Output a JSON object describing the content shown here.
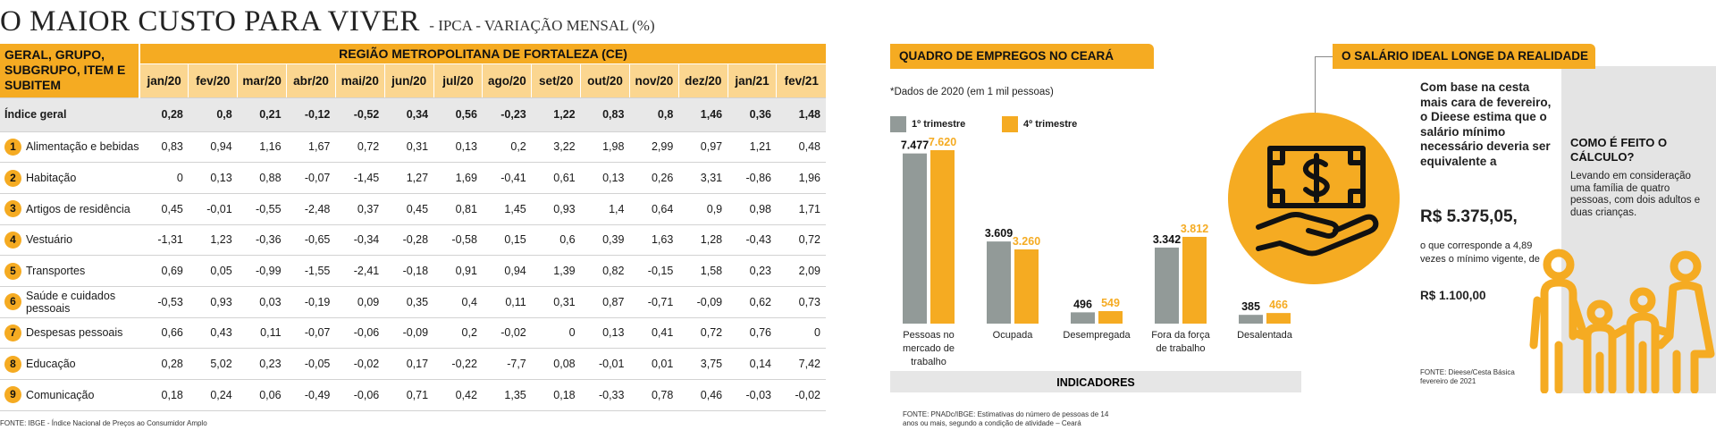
{
  "header": {
    "title": "O MAIOR CUSTO PARA VIVER",
    "subtitle": "- IPCA - VARIAÇÃO MENSAL (%)"
  },
  "table": {
    "group_header": "GERAL, GRUPO, SUBGRUPO, ITEM E SUBITEM",
    "region_header": "REGIÃO METROPOLITANA DE FORTALEZA (CE)",
    "months": [
      "jan/20",
      "fev/20",
      "mar/20",
      "abr/20",
      "mai/20",
      "jun/20",
      "jul/20",
      "ago/20",
      "set/20",
      "out/20",
      "nov/20",
      "dez/20",
      "jan/21",
      "fev/21"
    ],
    "general_row": {
      "label": "Índice geral",
      "values": [
        "0,28",
        "0,8",
        "0,21",
        "-0,12",
        "-0,52",
        "0,34",
        "0,56",
        "-0,23",
        "1,22",
        "0,83",
        "0,8",
        "1,46",
        "0,36",
        "1,48"
      ]
    },
    "rows": [
      {
        "num": "1",
        "label": "Alimentação e bebidas",
        "values": [
          "0,83",
          "0,94",
          "1,16",
          "1,67",
          "0,72",
          "0,31",
          "0,13",
          "0,2",
          "3,22",
          "1,98",
          "2,99",
          "0,97",
          "1,21",
          "0,48"
        ]
      },
      {
        "num": "2",
        "label": "Habitação",
        "values": [
          "0",
          "0,13",
          "0,88",
          "-0,07",
          "-1,45",
          "1,27",
          "1,69",
          "-0,41",
          "0,61",
          "0,13",
          "0,26",
          "3,31",
          "-0,86",
          "1,96"
        ]
      },
      {
        "num": "3",
        "label": "Artigos de residência",
        "values": [
          "0,45",
          "-0,01",
          "-0,55",
          "-2,48",
          "0,37",
          "0,45",
          "0,81",
          "1,45",
          "0,93",
          "1,4",
          "0,64",
          "0,9",
          "0,98",
          "1,71"
        ]
      },
      {
        "num": "4",
        "label": "Vestuário",
        "values": [
          "-1,31",
          "1,23",
          "-0,36",
          "-0,65",
          "-0,34",
          "-0,28",
          "-0,58",
          "0,15",
          "0,6",
          "0,39",
          "1,63",
          "1,28",
          "-0,43",
          "0,72"
        ]
      },
      {
        "num": "5",
        "label": "Transportes",
        "values": [
          "0,69",
          "0,05",
          "-0,99",
          "-1,55",
          "-2,41",
          "-0,18",
          "0,91",
          "0,94",
          "1,39",
          "0,82",
          "-0,15",
          "1,58",
          "0,23",
          "2,09"
        ]
      },
      {
        "num": "6",
        "label": "Saúde e cuidados pessoais",
        "values": [
          "-0,53",
          "0,93",
          "0,03",
          "-0,19",
          "0,09",
          "0,35",
          "0,4",
          "0,11",
          "0,31",
          "0,87",
          "-0,71",
          "-0,09",
          "0,62",
          "0,73"
        ]
      },
      {
        "num": "7",
        "label": "Despesas pessoais",
        "values": [
          "0,66",
          "0,43",
          "0,11",
          "-0,07",
          "-0,06",
          "-0,09",
          "0,2",
          "-0,02",
          "0",
          "0,13",
          "0,41",
          "0,72",
          "0,76",
          "0"
        ]
      },
      {
        "num": "8",
        "label": "Educação",
        "values": [
          "0,28",
          "5,02",
          "0,23",
          "-0,05",
          "-0,02",
          "0,17",
          "-0,22",
          "-7,7",
          "0,08",
          "-0,01",
          "0,01",
          "3,75",
          "0,14",
          "7,42"
        ]
      },
      {
        "num": "9",
        "label": "Comunicação",
        "values": [
          "0,18",
          "0,24",
          "0,06",
          "-0,49",
          "-0,06",
          "0,71",
          "0,42",
          "1,35",
          "0,18",
          "-0,33",
          "0,78",
          "0,46",
          "-0,03",
          "-0,02"
        ]
      }
    ],
    "source": "FONTE: IBGE - Índice Nacional de Preços ao Consumidor Amplo"
  },
  "employment": {
    "title": "QUADRO DE EMPREGOS NO CEARÁ",
    "note": "*Dados de 2020 (em 1 mil pessoas)",
    "axis_title": "INDICADORES",
    "source": "FONTE: PNADc/IBGE: Estimativas do número de pessoas de 14 anos ou mais, segundo a condição de atividade – Ceará"
  },
  "chart_data": {
    "type": "bar",
    "title": "QUADRO DE EMPREGOS NO CEARÁ",
    "xlabel": "INDICADORES",
    "ylabel": "",
    "categories": [
      "Pessoas no mercado de trabalho",
      "Ocupada",
      "Desempregada",
      "Fora da força de trabalho",
      "Desalentada"
    ],
    "category_lines": [
      [
        "Pessoas no",
        "mercado de",
        "trabalho"
      ],
      [
        "Ocupada"
      ],
      [
        "Desempregada"
      ],
      [
        "Fora da força",
        "de trabalho"
      ],
      [
        "Desalentada"
      ]
    ],
    "series": [
      {
        "name": "1º trimestre",
        "values": [
          7477,
          3609,
          496,
          3342,
          385
        ],
        "labels": [
          "7.477",
          "3.609",
          "496",
          "3.342",
          "385"
        ]
      },
      {
        "name": "4º trimestre",
        "values": [
          7620,
          3260,
          549,
          3812,
          466
        ],
        "labels": [
          "7.620",
          "3.260",
          "549",
          "3.812",
          "466"
        ]
      }
    ],
    "ylim": [
      0,
      7620
    ],
    "grid": false,
    "legend": "top-left"
  },
  "salary": {
    "title": "O SALÁRIO IDEAL LONGE DA REALIDADE",
    "intro": "Com base na cesta mais cara de fevereiro, o Dieese estima que o salário mínimo necessário deveria ser equivalente a",
    "value": "R$ 5.375,05,",
    "middle": "o que corresponde a 4,89 vezes o mínimo vigente, de",
    "current": "R$ 1.100,00",
    "source": "FONTE: Dieese/Cesta Básica fevereiro de 2021",
    "how_title": "COMO É FEITO O CÁLCULO?",
    "how_text": "Levando em consideração uma família de quatro pessoas, com dois adultos e duas crianças."
  },
  "colors": {
    "accent": "#f5ab22",
    "accent_light": "#fbd690",
    "gray_bar": "#929a98",
    "panel_gray": "#e4e4e4",
    "general_row": "#e8e8e8"
  }
}
